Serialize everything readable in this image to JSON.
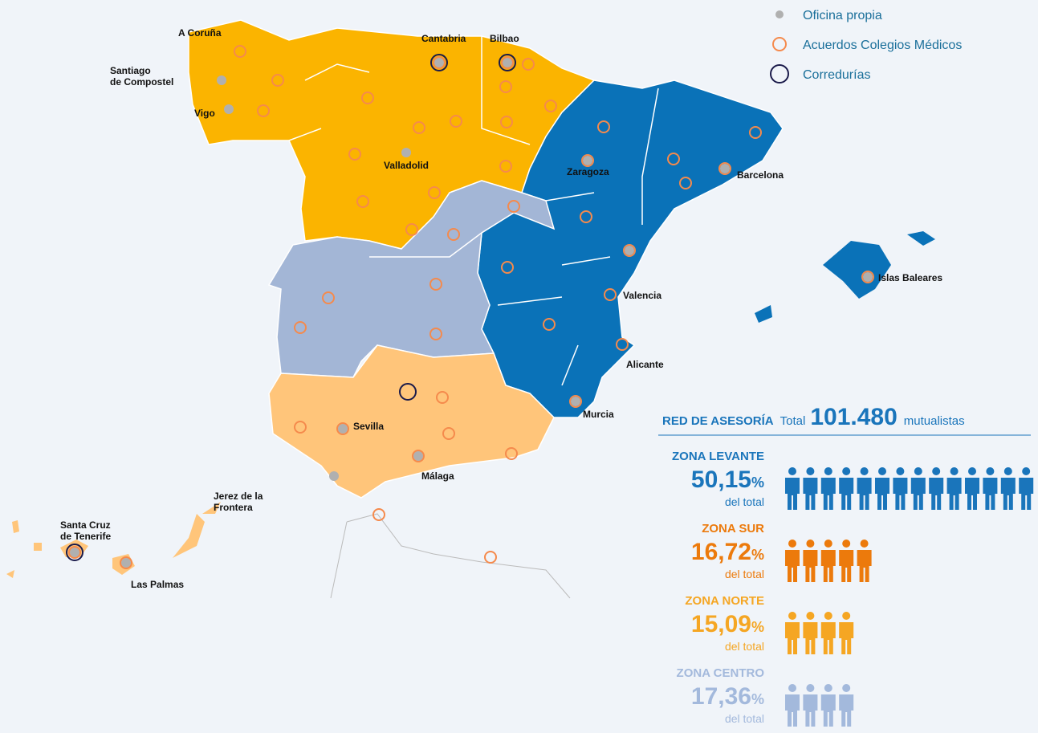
{
  "legend": [
    {
      "label": "Oficina propia"
    },
    {
      "label": "Acuerdos Colegios Médicos"
    },
    {
      "label": "Corredurías"
    }
  ],
  "map_labels": [
    {
      "lines": [
        "A Coruña"
      ]
    },
    {
      "lines": [
        "Santiago",
        "de Compostel"
      ]
    },
    {
      "lines": [
        "Vigo"
      ]
    },
    {
      "lines": [
        "Cantabria"
      ]
    },
    {
      "lines": [
        "Bilbao"
      ]
    },
    {
      "lines": [
        "Valladolid"
      ]
    },
    {
      "lines": [
        "Zaragoza"
      ]
    },
    {
      "lines": [
        "Barcelona"
      ]
    },
    {
      "lines": [
        "Islas Baleares"
      ]
    },
    {
      "lines": [
        "Valencia"
      ]
    },
    {
      "lines": [
        "Alicante"
      ]
    },
    {
      "lines": [
        "Murcia"
      ]
    },
    {
      "lines": [
        "Sevilla"
      ]
    },
    {
      "lines": [
        "Málaga"
      ]
    },
    {
      "lines": [
        "Jerez de la",
        "Frontera"
      ]
    },
    {
      "lines": [
        "Santa Cruz",
        "de Tenerife"
      ]
    },
    {
      "lines": [
        "Las Palmas"
      ]
    }
  ],
  "stats": {
    "title": "RED DE ASESORÍA",
    "total_label": "Total",
    "total": "101.480",
    "unit": "mutualistas",
    "percent_sign": "%",
    "of_total": "del total",
    "zones": [
      {
        "name": "ZONA LEVANTE",
        "percent": "50,15",
        "icons": 14,
        "color": "#1a75bb"
      },
      {
        "name": "ZONA SUR",
        "percent": "16,72",
        "icons": 5,
        "color": "#ec7a0c"
      },
      {
        "name": "ZONA NORTE",
        "percent": "15,09",
        "icons": 4,
        "color": "#f5a623"
      },
      {
        "name": "ZONA CENTRO",
        "percent": "17,36",
        "icons": 4,
        "color": "#a3b9dc"
      }
    ]
  }
}
